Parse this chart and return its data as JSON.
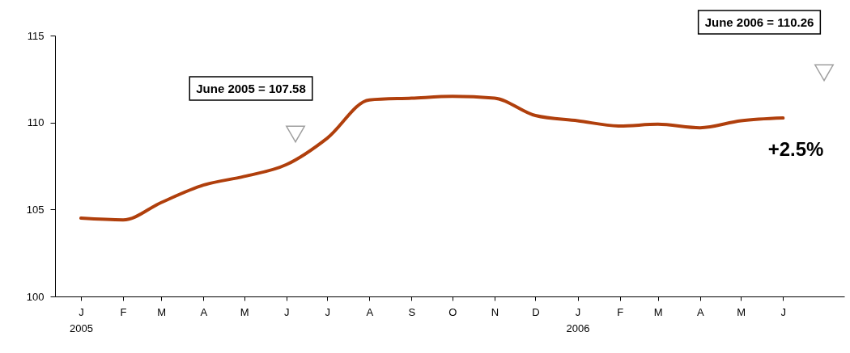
{
  "chart_data": {
    "type": "line",
    "x": [
      "2005-01",
      "2005-02",
      "2005-03",
      "2005-04",
      "2005-05",
      "2005-06",
      "2005-07",
      "2005-08",
      "2005-09",
      "2005-10",
      "2005-11",
      "2005-12",
      "2006-01",
      "2006-02",
      "2006-03",
      "2006-04",
      "2006-05",
      "2006-06"
    ],
    "series": [
      {
        "color": "#b03f0c",
        "values": [
          104.5,
          104.4,
          105.4,
          106.4,
          106.9,
          107.58,
          109.1,
          111.3,
          111.4,
          111.5,
          111.4,
          110.4,
          110.1,
          109.8,
          109.9,
          109.7,
          110.1,
          110.26
        ]
      }
    ],
    "xlim": [
      "2004-12-13",
      "2006-07-16"
    ],
    "xticks": [
      {
        "value": "2005-01",
        "label": "J\n2005"
      },
      {
        "value": "2005-02",
        "label": "F"
      },
      {
        "value": "2005-03",
        "label": "M"
      },
      {
        "value": "2005-04",
        "label": "A"
      },
      {
        "value": "2005-05",
        "label": "M"
      },
      {
        "value": "2005-06",
        "label": "J"
      },
      {
        "value": "2005-07",
        "label": "J"
      },
      {
        "value": "2005-08",
        "label": "A"
      },
      {
        "value": "2005-09",
        "label": "S"
      },
      {
        "value": "2005-10",
        "label": "O"
      },
      {
        "value": "2005-11",
        "label": "N"
      },
      {
        "value": "2005-12",
        "label": "D"
      },
      {
        "value": "2006-01",
        "label": "J\n2006"
      },
      {
        "value": "2006-02",
        "label": "F"
      },
      {
        "value": "2006-03",
        "label": "M"
      },
      {
        "value": "2006-04",
        "label": "A"
      },
      {
        "value": "2006-05",
        "label": "M"
      },
      {
        "value": "2006-06",
        "label": "J"
      }
    ],
    "ylim": [
      100,
      115
    ],
    "yticks": [
      100,
      105,
      110,
      115
    ],
    "grid": false,
    "legend": false,
    "marker": "none",
    "line_style": "solid",
    "annotations": [
      "June 2005 = 107.58",
      "June 2006 = 110.26",
      "+2.5%"
    ]
  }
}
